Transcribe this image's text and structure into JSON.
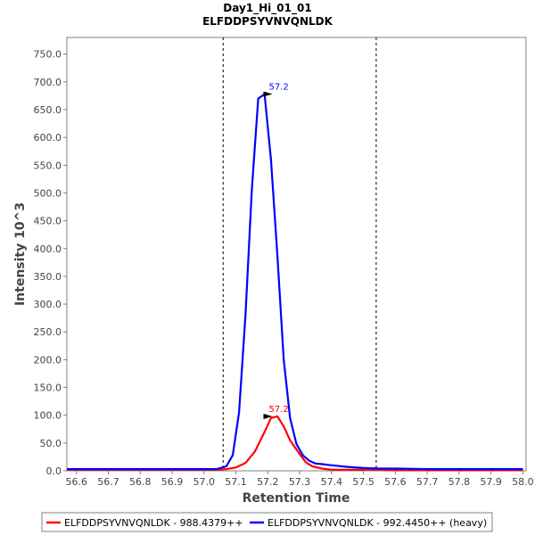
{
  "chart_data": {
    "type": "line",
    "title": "Day1_Hi_01_01",
    "subtitle": "ELFDDPSYVNVQNLDK",
    "xlabel": "Retention Time",
    "ylabel": "Intensity 10^3",
    "xlim": [
      56.57,
      58.01
    ],
    "ylim": [
      0,
      780
    ],
    "x_ticks": [
      "56.6",
      "56.7",
      "56.8",
      "56.9",
      "57.0",
      "57.1",
      "57.2",
      "57.3",
      "57.4",
      "57.5",
      "57.6",
      "57.7",
      "57.8",
      "57.9",
      "58.0"
    ],
    "y_ticks": [
      "0.0",
      "50.0",
      "100.0",
      "150.0",
      "200.0",
      "250.0",
      "300.0",
      "350.0",
      "400.0",
      "450.0",
      "500.0",
      "550.0",
      "600.0",
      "650.0",
      "700.0",
      "750.0"
    ],
    "grid": false,
    "boundaries": [
      57.06,
      57.54
    ],
    "legend_position": "bottom",
    "series": [
      {
        "name": "ELFDDPSYVNVQNLDK - 988.4379++",
        "color": "#ff0000",
        "peak_label": "57.2",
        "peak_x": 57.22,
        "peak_y": 98,
        "x": [
          56.57,
          57.04,
          57.07,
          57.1,
          57.13,
          57.16,
          57.19,
          57.21,
          57.23,
          57.25,
          57.27,
          57.3,
          57.32,
          57.34,
          57.37,
          57.4,
          57.45,
          57.5,
          57.55,
          57.6,
          57.7,
          58.0
        ],
        "values": [
          2,
          2,
          3,
          6,
          14,
          35,
          70,
          95,
          98,
          80,
          55,
          30,
          15,
          8,
          4,
          2,
          2,
          2,
          2,
          1,
          1,
          1
        ]
      },
      {
        "name": "ELFDDPSYVNVQNLDK - 992.4450++ (heavy)",
        "color": "#0000ff",
        "peak_label": "57.2",
        "peak_x": 57.22,
        "peak_y": 678,
        "x": [
          56.57,
          57.04,
          57.07,
          57.09,
          57.11,
          57.13,
          57.15,
          57.17,
          57.19,
          57.21,
          57.23,
          57.25,
          57.27,
          57.29,
          57.31,
          57.33,
          57.35,
          57.37,
          57.4,
          57.45,
          57.5,
          57.55,
          57.6,
          57.7,
          57.8,
          58.0
        ],
        "values": [
          3,
          3,
          8,
          28,
          105,
          280,
          505,
          670,
          678,
          560,
          390,
          200,
          95,
          48,
          28,
          18,
          13,
          12,
          10,
          7,
          5,
          4,
          4,
          3,
          3,
          3
        ]
      }
    ]
  }
}
